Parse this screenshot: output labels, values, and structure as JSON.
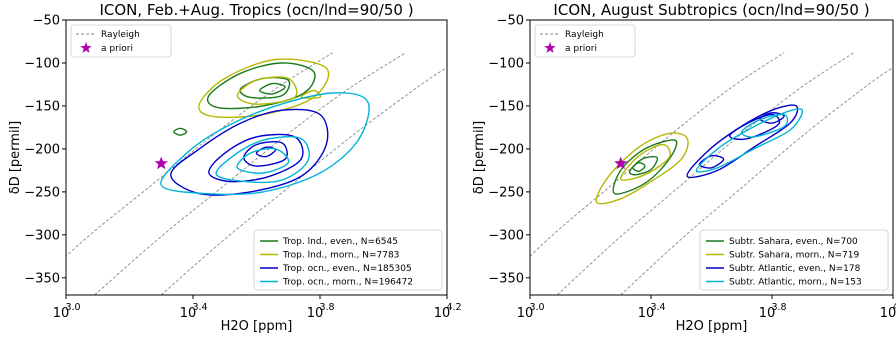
{
  "chart_data": [
    {
      "type": "line",
      "title": "ICON, Feb.+Aug. Tropics (ocn/lnd=90/50 )",
      "xlabel": "H2O [ppm]",
      "ylabel": "δD [permil]",
      "x_scale": "log10",
      "xlim": [
        3.0,
        4.2
      ],
      "ylim": [
        -370,
        -50
      ],
      "x_ticks": [
        {
          "value": 3.0,
          "base": "10",
          "exp": "3.0"
        },
        {
          "value": 3.4,
          "base": "10",
          "exp": "3.4"
        },
        {
          "value": 3.8,
          "base": "10",
          "exp": "3.8"
        },
        {
          "value": 4.2,
          "base": "10",
          "exp": "4.2"
        }
      ],
      "y_ticks": [
        -50,
        -100,
        -150,
        -200,
        -250,
        -300,
        -350
      ],
      "rayleigh_legend": "Rayleigh",
      "apriori_legend": "a priori",
      "apriori": {
        "log10_h2o": 3.3,
        "dD": -217
      },
      "rayleigh_curves": [
        [
          [
            2.87,
            -370
          ],
          [
            3.06,
            -305
          ],
          [
            3.26,
            -245
          ],
          [
            3.46,
            -185
          ],
          [
            3.66,
            -130
          ],
          [
            3.84,
            -88
          ]
        ],
        [
          [
            3.09,
            -370
          ],
          [
            3.29,
            -305
          ],
          [
            3.49,
            -245
          ],
          [
            3.69,
            -185
          ],
          [
            3.89,
            -130
          ],
          [
            4.07,
            -88
          ]
        ],
        [
          [
            3.3,
            -370
          ],
          [
            3.5,
            -305
          ],
          [
            3.7,
            -245
          ],
          [
            3.9,
            -185
          ],
          [
            4.1,
            -130
          ],
          [
            4.2,
            -105
          ]
        ]
      ],
      "series": [
        {
          "name": "Trop. lnd., even., N=6545",
          "color": "#1a7a1a",
          "contours": [
            [
              [
                3.45,
                -138
              ],
              [
                3.55,
                -112
              ],
              [
                3.68,
                -100
              ],
              [
                3.78,
                -110
              ],
              [
                3.75,
                -135
              ],
              [
                3.62,
                -150
              ],
              [
                3.48,
                -152
              ]
            ],
            [
              [
                3.55,
                -130
              ],
              [
                3.62,
                -118
              ],
              [
                3.7,
                -120
              ],
              [
                3.68,
                -138
              ],
              [
                3.58,
                -140
              ]
            ],
            [
              [
                3.61,
                -132
              ],
              [
                3.65,
                -124
              ],
              [
                3.69,
                -128
              ],
              [
                3.65,
                -136
              ]
            ],
            [
              [
                3.34,
                -180
              ],
              [
                3.36,
                -176
              ],
              [
                3.38,
                -180
              ],
              [
                3.36,
                -184
              ]
            ]
          ]
        },
        {
          "name": "Trop. lnd., morn., N=7783",
          "color": "#b5b800",
          "contours": [
            [
              [
                3.42,
                -148
              ],
              [
                3.5,
                -118
              ],
              [
                3.66,
                -96
              ],
              [
                3.82,
                -106
              ],
              [
                3.78,
                -140
              ],
              [
                3.62,
                -160
              ],
              [
                3.46,
                -162
              ]
            ],
            [
              [
                3.54,
                -138
              ],
              [
                3.6,
                -120
              ],
              [
                3.7,
                -118
              ],
              [
                3.72,
                -140
              ],
              [
                3.6,
                -148
              ]
            ],
            [
              [
                3.74,
                -140
              ],
              [
                3.78,
                -132
              ],
              [
                3.8,
                -140
              ]
            ]
          ]
        },
        {
          "name": "Trop. ocn., even., N=185305",
          "color": "#0000cc",
          "contours": [
            [
              [
                3.33,
                -230
              ],
              [
                3.42,
                -200
              ],
              [
                3.55,
                -170
              ],
              [
                3.68,
                -155
              ],
              [
                3.8,
                -160
              ],
              [
                3.82,
                -195
              ],
              [
                3.74,
                -232
              ],
              [
                3.58,
                -250
              ],
              [
                3.42,
                -252
              ]
            ],
            [
              [
                3.45,
                -228
              ],
              [
                3.5,
                -205
              ],
              [
                3.6,
                -186
              ],
              [
                3.72,
                -186
              ],
              [
                3.74,
                -212
              ],
              [
                3.64,
                -232
              ],
              [
                3.52,
                -238
              ]
            ],
            [
              [
                3.56,
                -210
              ],
              [
                3.6,
                -195
              ],
              [
                3.68,
                -193
              ],
              [
                3.69,
                -212
              ],
              [
                3.6,
                -220
              ]
            ],
            [
              [
                3.6,
                -205
              ],
              [
                3.63,
                -198
              ],
              [
                3.66,
                -201
              ],
              [
                3.63,
                -209
              ]
            ]
          ]
        },
        {
          "name": "Trop. ocn., morn., N=196472",
          "color": "#00b4d8",
          "contours": [
            [
              [
                3.3,
                -242
              ],
              [
                3.38,
                -205
              ],
              [
                3.5,
                -175
              ],
              [
                3.66,
                -150
              ],
              [
                3.84,
                -135
              ],
              [
                3.95,
                -145
              ],
              [
                3.92,
                -190
              ],
              [
                3.8,
                -228
              ],
              [
                3.62,
                -250
              ],
              [
                3.44,
                -252
              ]
            ],
            [
              [
                3.48,
                -232
              ],
              [
                3.52,
                -210
              ],
              [
                3.62,
                -190
              ],
              [
                3.74,
                -188
              ],
              [
                3.76,
                -215
              ],
              [
                3.66,
                -238
              ]
            ],
            [
              [
                3.54,
                -222
              ],
              [
                3.58,
                -205
              ],
              [
                3.66,
                -200
              ],
              [
                3.7,
                -216
              ],
              [
                3.62,
                -228
              ]
            ]
          ]
        }
      ]
    },
    {
      "type": "line",
      "title": "ICON, August Subtropics (ocn/lnd=90/50 )",
      "xlabel": "H2O [ppm]",
      "ylabel": "δD [permil]",
      "x_scale": "log10",
      "xlim": [
        3.0,
        4.2
      ],
      "ylim": [
        -370,
        -50
      ],
      "x_ticks": [
        {
          "value": 3.0,
          "base": "10",
          "exp": "3.0"
        },
        {
          "value": 3.4,
          "base": "10",
          "exp": "3.4"
        },
        {
          "value": 3.8,
          "base": "10",
          "exp": "3.8"
        },
        {
          "value": 4.2,
          "base": "10",
          "exp": "4.2"
        }
      ],
      "y_ticks": [
        -50,
        -100,
        -150,
        -200,
        -250,
        -300,
        -350
      ],
      "rayleigh_legend": "Rayleigh",
      "apriori_legend": "a priori",
      "apriori": {
        "log10_h2o": 3.3,
        "dD": -217
      },
      "rayleigh_curves": [
        [
          [
            2.87,
            -370
          ],
          [
            3.06,
            -305
          ],
          [
            3.26,
            -245
          ],
          [
            3.46,
            -185
          ],
          [
            3.66,
            -130
          ],
          [
            3.84,
            -88
          ]
        ],
        [
          [
            3.09,
            -370
          ],
          [
            3.29,
            -305
          ],
          [
            3.49,
            -245
          ],
          [
            3.69,
            -185
          ],
          [
            3.89,
            -130
          ],
          [
            4.07,
            -88
          ]
        ],
        [
          [
            3.3,
            -370
          ],
          [
            3.5,
            -305
          ],
          [
            3.7,
            -245
          ],
          [
            3.9,
            -185
          ],
          [
            4.1,
            -130
          ],
          [
            4.2,
            -105
          ]
        ]
      ],
      "series": [
        {
          "name": "Subtr. Sahara, even., N=700",
          "color": "#1a7a1a",
          "contours": [
            [
              [
                3.28,
                -252
              ],
              [
                3.3,
                -225
              ],
              [
                3.38,
                -200
              ],
              [
                3.48,
                -190
              ],
              [
                3.46,
                -212
              ],
              [
                3.38,
                -240
              ]
            ],
            [
              [
                3.33,
                -226
              ],
              [
                3.37,
                -212
              ],
              [
                3.42,
                -210
              ],
              [
                3.4,
                -224
              ],
              [
                3.35,
                -230
              ]
            ],
            [
              [
                3.34,
                -222
              ],
              [
                3.36,
                -216
              ],
              [
                3.38,
                -220
              ],
              [
                3.36,
                -226
              ]
            ]
          ]
        },
        {
          "name": "Subtr. Sahara, morn., N=719",
          "color": "#b5b800",
          "contours": [
            [
              [
                3.22,
                -262
              ],
              [
                3.26,
                -232
              ],
              [
                3.36,
                -198
              ],
              [
                3.46,
                -182
              ],
              [
                3.52,
                -188
              ],
              [
                3.5,
                -212
              ],
              [
                3.4,
                -238
              ],
              [
                3.3,
                -258
              ]
            ],
            [
              [
                3.3,
                -235
              ],
              [
                3.36,
                -208
              ],
              [
                3.44,
                -195
              ],
              [
                3.46,
                -210
              ],
              [
                3.38,
                -230
              ]
            ]
          ]
        },
        {
          "name": "Subtr. Atlantic, even., N=178",
          "color": "#0000cc",
          "contours": [
            [
              [
                3.52,
                -232
              ],
              [
                3.58,
                -205
              ],
              [
                3.68,
                -178
              ],
              [
                3.8,
                -155
              ],
              [
                3.88,
                -150
              ],
              [
                3.86,
                -170
              ],
              [
                3.74,
                -198
              ],
              [
                3.62,
                -225
              ]
            ],
            [
              [
                3.66,
                -185
              ],
              [
                3.72,
                -170
              ],
              [
                3.8,
                -160
              ],
              [
                3.82,
                -172
              ],
              [
                3.72,
                -188
              ]
            ],
            [
              [
                3.76,
                -165
              ],
              [
                3.8,
                -158
              ],
              [
                3.84,
                -162
              ],
              [
                3.8,
                -170
              ]
            ],
            [
              [
                3.56,
                -218
              ],
              [
                3.6,
                -208
              ],
              [
                3.64,
                -212
              ],
              [
                3.6,
                -222
              ]
            ]
          ]
        },
        {
          "name": "Subtr. Atlantic, morn., N=153",
          "color": "#00b4d8",
          "contours": [
            [
              [
                3.55,
                -225
              ],
              [
                3.62,
                -200
              ],
              [
                3.72,
                -178
              ],
              [
                3.84,
                -158
              ],
              [
                3.9,
                -155
              ],
              [
                3.86,
                -178
              ],
              [
                3.74,
                -200
              ],
              [
                3.62,
                -222
              ]
            ],
            [
              [
                3.7,
                -180
              ],
              [
                3.76,
                -166
              ],
              [
                3.84,
                -160
              ],
              [
                3.84,
                -174
              ],
              [
                3.74,
                -186
              ]
            ]
          ]
        }
      ]
    }
  ]
}
